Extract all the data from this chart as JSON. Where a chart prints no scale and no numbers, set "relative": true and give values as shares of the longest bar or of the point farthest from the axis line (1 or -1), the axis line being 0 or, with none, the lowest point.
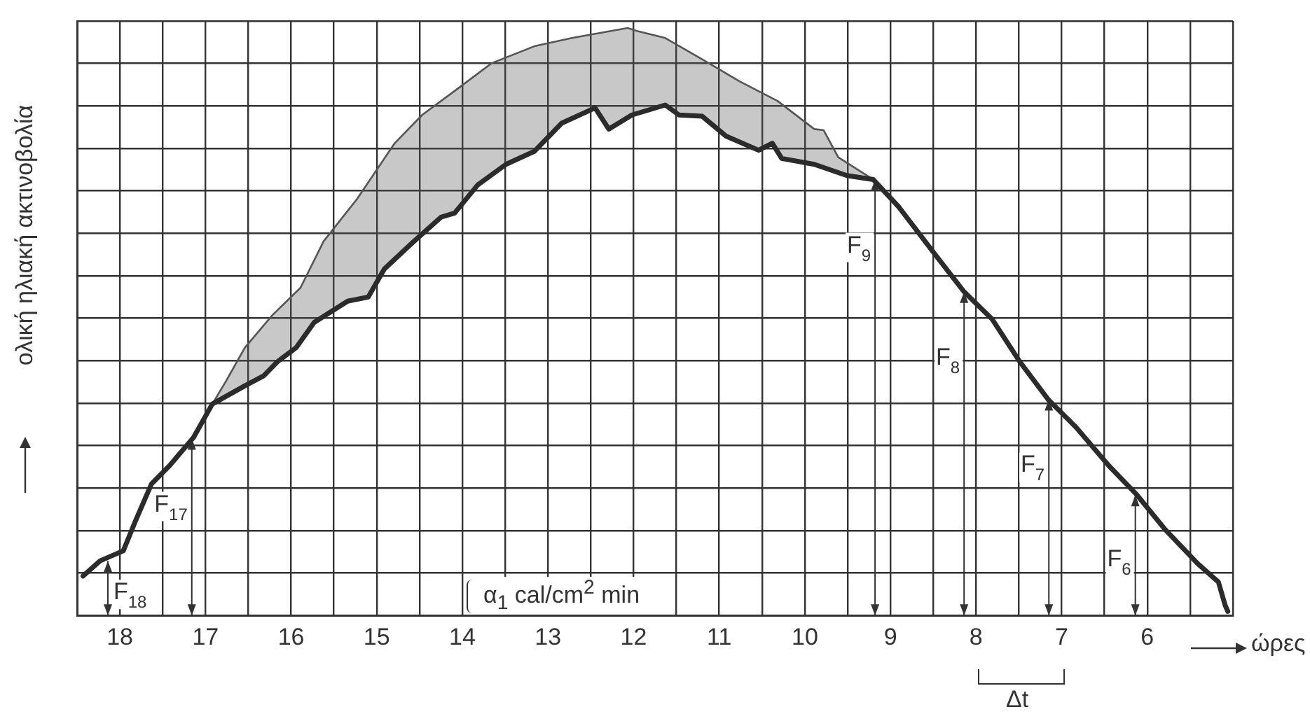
{
  "chart_data": {
    "type": "line",
    "relative": true,
    "ylabel": "ολική ηλιακή ακτινοβολία",
    "xlabel": "ώρες",
    "xlim": [
      18.5,
      5
    ],
    "xticks": [
      {
        "value": 18.5,
        "label": null
      },
      18,
      {
        "value": 17.5,
        "label": null
      },
      17,
      {
        "value": 16.5,
        "label": null
      },
      16,
      {
        "value": 15.5,
        "label": null
      },
      15,
      {
        "value": 14.5,
        "label": null
      },
      14,
      {
        "value": 13.5,
        "label": null
      },
      13,
      {
        "value": 12.5,
        "label": null
      },
      12,
      {
        "value": 11.5,
        "label": null
      },
      11,
      {
        "value": 10.5,
        "label": null
      },
      10,
      {
        "value": 9.5,
        "label": null
      },
      9,
      {
        "value": 8.5,
        "label": null
      },
      8,
      {
        "value": 7.5,
        "label": null
      },
      7,
      {
        "value": 6.5,
        "label": null
      },
      6,
      {
        "value": 5.5,
        "label": null
      },
      {
        "value": 5,
        "label": null
      }
    ],
    "grid": true,
    "legend": false,
    "series": [
      {
        "color": "#2b2b2b",
        "x": [
          18.43,
          18.23,
          17.96,
          17.82,
          17.63,
          17.42,
          17.14,
          16.92,
          16.54,
          16.32,
          16.16,
          15.94,
          15.73,
          15.34,
          15.1,
          14.91,
          14.58,
          14.25,
          14.09,
          13.82,
          13.49,
          13.16,
          12.84,
          12.45,
          12.29,
          12.02,
          11.63,
          11.47,
          11.2,
          10.92,
          10.54,
          10.38,
          10.27,
          9.89,
          9.51,
          9.2,
          8.9,
          8.47,
          8.14,
          7.81,
          7.49,
          7.16,
          6.83,
          6.45,
          6.12,
          5.79,
          5.41,
          5.17,
          5.09,
          5.06
        ],
        "values": [
          0.067,
          0.093,
          0.11,
          0.16,
          0.224,
          0.255,
          0.303,
          0.36,
          0.391,
          0.408,
          0.432,
          0.456,
          0.499,
          0.535,
          0.542,
          0.59,
          0.635,
          0.678,
          0.685,
          0.733,
          0.768,
          0.79,
          0.838,
          0.864,
          0.828,
          0.852,
          0.869,
          0.852,
          0.85,
          0.816,
          0.792,
          0.804,
          0.778,
          0.768,
          0.749,
          0.742,
          0.695,
          0.613,
          0.551,
          0.504,
          0.432,
          0.368,
          0.32,
          0.255,
          0.205,
          0.146,
          0.088,
          0.057,
          0.017,
          0.007
        ]
      },
      {
        "color": "#555555",
        "x": [
          16.92,
          16.76,
          16.54,
          16.22,
          15.89,
          15.62,
          15.23,
          14.79,
          14.47,
          14.09,
          13.66,
          13.16,
          12.72,
          12.07,
          11.96,
          11.63,
          11.2,
          10.76,
          10.32,
          9.89,
          9.78,
          9.61,
          9.2
        ],
        "values": [
          0.36,
          0.399,
          0.456,
          0.511,
          0.558,
          0.637,
          0.709,
          0.804,
          0.852,
          0.893,
          0.94,
          0.969,
          0.983,
          1,
          0.995,
          0.983,
          0.947,
          0.909,
          0.876,
          0.828,
          0.826,
          0.78,
          0.742
        ]
      }
    ],
    "annotations": [
      {
        "text": "F$_{18}$",
        "x": 18.14,
        "y": 0.093
      },
      {
        "text": "F$_{17}$",
        "x": 17.16,
        "y": 0.301
      },
      {
        "text": "F$_{9}$",
        "x": 9.18,
        "y": 0.742
      },
      {
        "text": "F$_{8}$",
        "x": 8.14,
        "y": 0.551
      },
      {
        "text": "F$_{7}$",
        "x": 7.15,
        "y": 0.368
      },
      {
        "text": "F$_{6}$",
        "x": 6.14,
        "y": 0.205
      },
      "α$_{1}$ cal/cm$^{2}$ min",
      "Δt"
    ]
  }
}
